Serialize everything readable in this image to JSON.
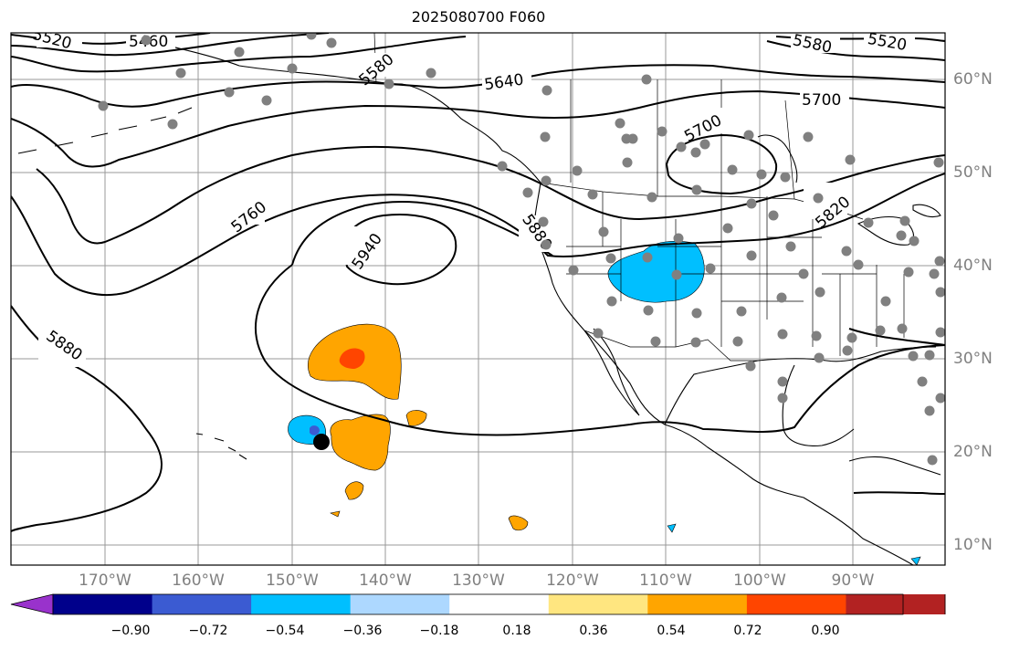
{
  "title": "2025080700 F060",
  "lat_labels": [
    "60°N",
    "50°N",
    "40°N",
    "30°N",
    "20°N",
    "10°N"
  ],
  "lon_labels": [
    "170°W",
    "160°W",
    "150°W",
    "140°W",
    "130°W",
    "120°W",
    "110°W",
    "100°W",
    "90°W"
  ],
  "contour_labels": [
    "5460",
    "5520",
    "5580",
    "5640",
    "5700",
    "5760",
    "5820",
    "5880",
    "5940",
    "5520",
    "5580",
    "5700",
    "5880"
  ],
  "colorbar": {
    "ticks": [
      "−0.90",
      "−0.72",
      "−0.54",
      "−0.36",
      "−0.18",
      "0.18",
      "0.36",
      "0.54",
      "0.72",
      "0.90"
    ],
    "colors": [
      "#9932cc",
      "#00008b",
      "#3b5bd2",
      "#00bfff",
      "#add8ff",
      "#ffffff",
      "#ffe680",
      "#ffa500",
      "#ff4500",
      "#b22222",
      "#ff88aa"
    ]
  },
  "station_marker_color": "#808080",
  "highlight_marker_color": "#000000"
}
